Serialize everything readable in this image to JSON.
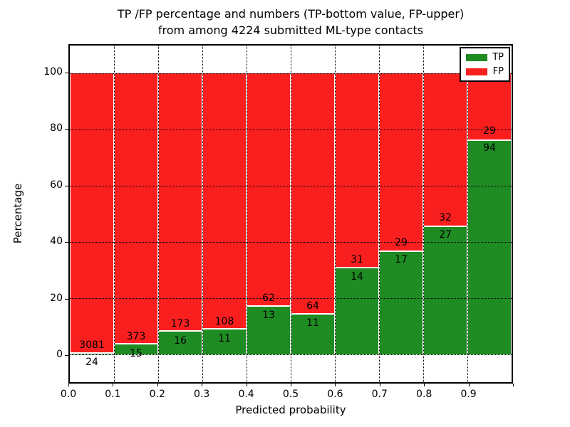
{
  "title": {
    "line1": "TP /FP percentage and numbers (TP-bottom value, FP-upper)",
    "line2": "from among 4224 submitted ML-type contacts"
  },
  "legend": {
    "position": "upper right",
    "items": [
      {
        "label": "TP",
        "color": "#1e8c23"
      },
      {
        "label": "FP",
        "color": "#fa1f1f"
      }
    ]
  },
  "chart_data": {
    "type": "bar",
    "stacked": true,
    "normalization": "each bin stacked to 100%; numeric labels on bars are raw counts (TP bottom, FP upper)",
    "title": "TP /FP percentage and numbers (TP-bottom value, FP-upper) from among 4224 submitted ML-type contacts",
    "xlabel": "Predicted probability",
    "ylabel": "Percentage",
    "categories": [
      "0.0",
      "0.1",
      "0.2",
      "0.3",
      "0.4",
      "0.5",
      "0.6",
      "0.7",
      "0.8",
      "0.9"
    ],
    "bin_width": 0.1,
    "x_tick_labels": [
      "0.0",
      "0.1",
      "0.2",
      "0.3",
      "0.4",
      "0.5",
      "0.6",
      "0.7",
      "0.8",
      "0.9"
    ],
    "y_ticks": [
      0,
      20,
      40,
      60,
      80,
      100
    ],
    "ylim": [
      -10,
      110
    ],
    "xlim": [
      0.0,
      1.0
    ],
    "grid": true,
    "legend_position": "upper right",
    "total_contacts": 4224,
    "series": [
      {
        "name": "TP",
        "color": "#1e8c23",
        "counts": [
          24,
          15,
          16,
          11,
          13,
          11,
          14,
          17,
          27,
          94
        ],
        "percent": [
          0.77,
          3.87,
          8.47,
          9.24,
          17.33,
          14.67,
          31.11,
          36.96,
          45.76,
          76.42
        ]
      },
      {
        "name": "FP",
        "color": "#fa1f1f",
        "counts": [
          3081,
          373,
          173,
          108,
          62,
          64,
          31,
          29,
          32,
          29
        ],
        "percent": [
          99.23,
          96.13,
          91.53,
          90.76,
          82.67,
          85.33,
          68.89,
          63.04,
          54.24,
          23.58
        ]
      }
    ]
  }
}
